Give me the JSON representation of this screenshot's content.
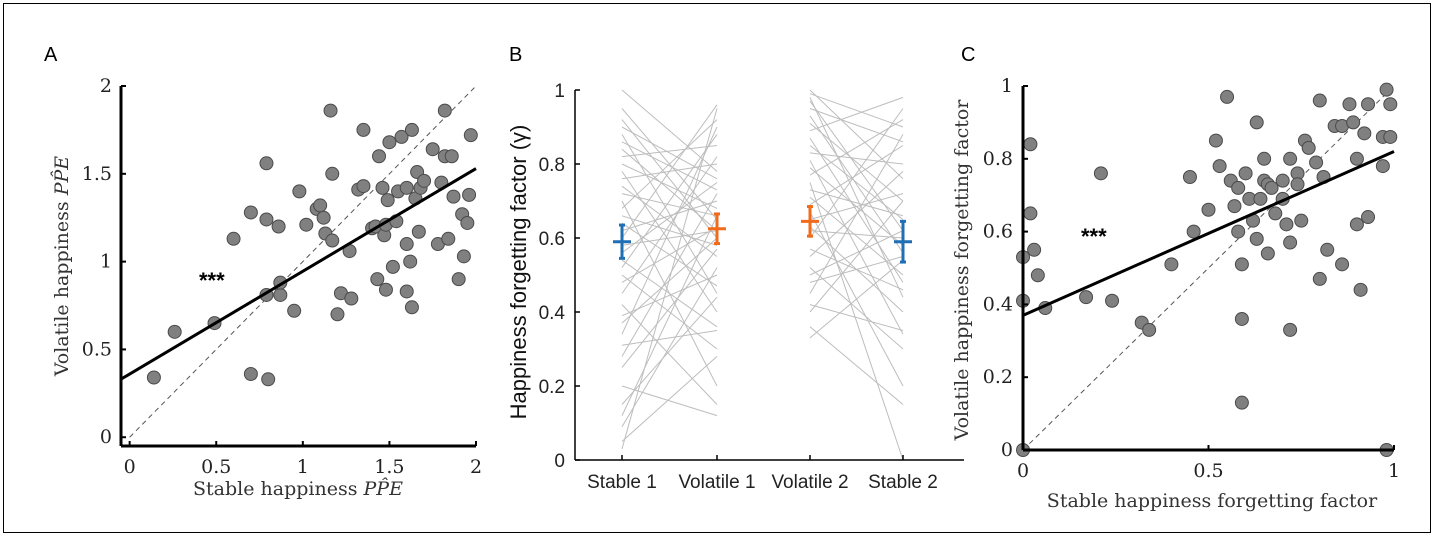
{
  "colors": {
    "point_fill": "#808080",
    "point_stroke": "#4a4a4a",
    "regression": "#000000",
    "identity": "#555555",
    "pair_line": "#bdbdbd",
    "stable": "#1f6fb4",
    "volatile": "#f26b1d"
  },
  "chart_data": [
    {
      "panel": "A",
      "type": "scatter",
      "xlabel": "Stable happiness",
      "xlabel_math": "PP̂E",
      "ylabel": "Volatile happiness",
      "ylabel_math": "PP̂E",
      "xlim": [
        -0.05,
        2.0
      ],
      "ylim": [
        -0.05,
        2.0
      ],
      "xticks": [
        "0",
        "0.5",
        "1",
        "1.5",
        "2"
      ],
      "yticks": [
        "0",
        "0.5",
        "1",
        "1.5",
        "2"
      ],
      "annotation": "***",
      "identity_line": true,
      "regression": {
        "intercept": 0.36,
        "slope": 0.585
      },
      "points": [
        [
          0.14,
          0.34
        ],
        [
          0.26,
          0.6
        ],
        [
          0.49,
          0.65
        ],
        [
          0.6,
          1.13
        ],
        [
          0.7,
          1.28
        ],
        [
          0.7,
          0.36
        ],
        [
          0.8,
          0.33
        ],
        [
          0.79,
          1.56
        ],
        [
          0.79,
          1.24
        ],
        [
          0.79,
          0.81
        ],
        [
          0.87,
          0.81
        ],
        [
          0.86,
          1.2
        ],
        [
          0.87,
          0.88
        ],
        [
          0.95,
          0.72
        ],
        [
          0.98,
          1.4
        ],
        [
          1.02,
          1.21
        ],
        [
          1.08,
          1.3
        ],
        [
          1.1,
          1.32
        ],
        [
          1.12,
          1.25
        ],
        [
          1.13,
          1.16
        ],
        [
          1.16,
          1.86
        ],
        [
          1.17,
          1.5
        ],
        [
          1.17,
          1.12
        ],
        [
          1.2,
          0.7
        ],
        [
          1.22,
          0.82
        ],
        [
          1.27,
          1.06
        ],
        [
          1.28,
          0.79
        ],
        [
          1.32,
          1.41
        ],
        [
          1.35,
          1.43
        ],
        [
          1.35,
          1.75
        ],
        [
          1.4,
          1.19
        ],
        [
          1.42,
          1.2
        ],
        [
          1.43,
          0.9
        ],
        [
          1.44,
          1.6
        ],
        [
          1.46,
          1.42
        ],
        [
          1.47,
          1.15
        ],
        [
          1.48,
          1.21
        ],
        [
          1.48,
          0.84
        ],
        [
          1.49,
          1.35
        ],
        [
          1.5,
          1.68
        ],
        [
          1.52,
          0.97
        ],
        [
          1.54,
          1.23
        ],
        [
          1.55,
          1.4
        ],
        [
          1.57,
          1.71
        ],
        [
          1.6,
          0.83
        ],
        [
          1.6,
          1.1
        ],
        [
          1.6,
          1.42
        ],
        [
          1.62,
          1.0
        ],
        [
          1.63,
          1.75
        ],
        [
          1.63,
          0.74
        ],
        [
          1.65,
          1.36
        ],
        [
          1.66,
          1.51
        ],
        [
          1.67,
          1.17
        ],
        [
          1.68,
          1.42
        ],
        [
          1.7,
          1.46
        ],
        [
          1.75,
          1.64
        ],
        [
          1.78,
          1.1
        ],
        [
          1.8,
          1.45
        ],
        [
          1.82,
          1.6
        ],
        [
          1.82,
          1.86
        ],
        [
          1.84,
          1.13
        ],
        [
          1.86,
          1.6
        ],
        [
          1.87,
          1.37
        ],
        [
          1.9,
          0.9
        ],
        [
          1.92,
          1.27
        ],
        [
          1.93,
          1.03
        ],
        [
          1.95,
          1.22
        ],
        [
          1.96,
          1.38
        ],
        [
          1.97,
          1.72
        ]
      ]
    },
    {
      "panel": "B",
      "type": "line",
      "ylabel": "Happiness forgetting factor (γ)",
      "ylim": [
        0,
        1
      ],
      "yticks": [
        "0",
        "0.2",
        "0.4",
        "0.6",
        "0.8",
        "1"
      ],
      "categories": [
        "Stable 1",
        "Volatile 1",
        "Volatile 2",
        "Stable 2"
      ],
      "pairs_block1": [
        [
          0.03,
          0.95
        ],
        [
          0.05,
          0.28
        ],
        [
          0.09,
          0.52
        ],
        [
          0.12,
          0.66
        ],
        [
          0.15,
          0.44
        ],
        [
          0.2,
          0.12
        ],
        [
          0.25,
          0.57
        ],
        [
          0.28,
          0.72
        ],
        [
          0.31,
          0.35
        ],
        [
          0.34,
          0.9
        ],
        [
          0.37,
          0.6
        ],
        [
          0.39,
          0.5
        ],
        [
          0.42,
          0.15
        ],
        [
          0.45,
          0.82
        ],
        [
          0.48,
          0.63
        ],
        [
          0.5,
          0.3
        ],
        [
          0.52,
          0.88
        ],
        [
          0.54,
          0.36
        ],
        [
          0.56,
          0.75
        ],
        [
          0.58,
          0.62
        ],
        [
          0.6,
          0.96
        ],
        [
          0.62,
          0.7
        ],
        [
          0.64,
          0.47
        ],
        [
          0.66,
          0.58
        ],
        [
          0.68,
          0.92
        ],
        [
          0.7,
          0.2
        ],
        [
          0.72,
          0.66
        ],
        [
          0.74,
          0.55
        ],
        [
          0.76,
          0.8
        ],
        [
          0.78,
          0.4
        ],
        [
          0.8,
          0.68
        ],
        [
          0.82,
          0.85
        ],
        [
          0.84,
          0.62
        ],
        [
          0.86,
          0.73
        ],
        [
          0.88,
          0.45
        ],
        [
          0.9,
          0.76
        ],
        [
          0.92,
          0.6
        ],
        [
          0.95,
          0.65
        ],
        [
          1.0,
          0.78
        ]
      ],
      "pairs_block2": [
        [
          0.33,
          0.54
        ],
        [
          0.36,
          0.15
        ],
        [
          0.4,
          0.7
        ],
        [
          0.42,
          0.35
        ],
        [
          0.45,
          0.88
        ],
        [
          0.48,
          0.55
        ],
        [
          0.5,
          0.62
        ],
        [
          0.52,
          0.3
        ],
        [
          0.55,
          0.78
        ],
        [
          0.57,
          0.46
        ],
        [
          0.6,
          0.95
        ],
        [
          0.62,
          0.6
        ],
        [
          0.63,
          0.4
        ],
        [
          0.65,
          0.72
        ],
        [
          0.67,
          0.2
        ],
        [
          0.69,
          0.85
        ],
        [
          0.71,
          0.5
        ],
        [
          0.73,
          0.66
        ],
        [
          0.75,
          0.0
        ],
        [
          0.77,
          0.92
        ],
        [
          0.79,
          0.58
        ],
        [
          0.81,
          0.34
        ],
        [
          0.83,
          0.8
        ],
        [
          0.85,
          0.65
        ],
        [
          0.87,
          0.48
        ],
        [
          0.89,
          0.98
        ],
        [
          0.91,
          0.7
        ],
        [
          0.93,
          0.56
        ],
        [
          0.95,
          0.86
        ],
        [
          0.97,
          0.62
        ],
        [
          0.98,
          0.44
        ],
        [
          0.99,
          0.9
        ],
        [
          1.0,
          0.76
        ]
      ],
      "means": [
        {
          "category": "Stable 1",
          "mean": 0.59,
          "sem": 0.045,
          "color": "stable"
        },
        {
          "category": "Volatile 1",
          "mean": 0.625,
          "sem": 0.04,
          "color": "volatile"
        },
        {
          "category": "Volatile 2",
          "mean": 0.645,
          "sem": 0.04,
          "color": "volatile"
        },
        {
          "category": "Stable 2",
          "mean": 0.59,
          "sem": 0.055,
          "color": "stable"
        }
      ]
    },
    {
      "panel": "C",
      "type": "scatter",
      "xlabel": "Stable happiness forgetting factor",
      "ylabel": "Volatile happiness forgetting factor",
      "xlim": [
        0,
        1
      ],
      "ylim": [
        0,
        1
      ],
      "xticks": [
        "0",
        "0.5",
        "1"
      ],
      "yticks": [
        "0",
        "0.2",
        "0.4",
        "0.6",
        "0.8",
        "1"
      ],
      "annotation": "***",
      "identity_line": true,
      "regression": {
        "intercept": 0.37,
        "slope": 0.45
      },
      "points": [
        [
          0.0,
          0.0
        ],
        [
          0.0,
          0.41
        ],
        [
          0.0,
          0.53
        ],
        [
          0.02,
          0.84
        ],
        [
          0.02,
          0.65
        ],
        [
          0.03,
          0.55
        ],
        [
          0.04,
          0.48
        ],
        [
          0.06,
          0.39
        ],
        [
          0.17,
          0.42
        ],
        [
          0.21,
          0.76
        ],
        [
          0.24,
          0.41
        ],
        [
          0.32,
          0.35
        ],
        [
          0.34,
          0.33
        ],
        [
          0.4,
          0.51
        ],
        [
          0.45,
          0.75
        ],
        [
          0.46,
          0.6
        ],
        [
          0.5,
          0.66
        ],
        [
          0.52,
          0.85
        ],
        [
          0.53,
          0.78
        ],
        [
          0.55,
          0.97
        ],
        [
          0.56,
          0.74
        ],
        [
          0.57,
          0.67
        ],
        [
          0.58,
          0.72
        ],
        [
          0.58,
          0.6
        ],
        [
          0.59,
          0.51
        ],
        [
          0.59,
          0.36
        ],
        [
          0.59,
          0.13
        ],
        [
          0.6,
          0.76
        ],
        [
          0.61,
          0.69
        ],
        [
          0.62,
          0.63
        ],
        [
          0.63,
          0.9
        ],
        [
          0.63,
          0.58
        ],
        [
          0.64,
          0.69
        ],
        [
          0.65,
          0.8
        ],
        [
          0.65,
          0.74
        ],
        [
          0.66,
          0.54
        ],
        [
          0.66,
          0.73
        ],
        [
          0.67,
          0.72
        ],
        [
          0.68,
          0.65
        ],
        [
          0.7,
          0.74
        ],
        [
          0.7,
          0.69
        ],
        [
          0.71,
          0.62
        ],
        [
          0.72,
          0.8
        ],
        [
          0.72,
          0.57
        ],
        [
          0.72,
          0.33
        ],
        [
          0.74,
          0.76
        ],
        [
          0.74,
          0.73
        ],
        [
          0.75,
          0.63
        ],
        [
          0.76,
          0.85
        ],
        [
          0.77,
          0.83
        ],
        [
          0.79,
          0.79
        ],
        [
          0.8,
          0.47
        ],
        [
          0.8,
          0.96
        ],
        [
          0.81,
          0.75
        ],
        [
          0.82,
          0.55
        ],
        [
          0.84,
          0.89
        ],
        [
          0.86,
          0.51
        ],
        [
          0.86,
          0.89
        ],
        [
          0.88,
          0.95
        ],
        [
          0.89,
          0.9
        ],
        [
          0.9,
          0.62
        ],
        [
          0.9,
          0.8
        ],
        [
          0.91,
          0.44
        ],
        [
          0.92,
          0.87
        ],
        [
          0.93,
          0.95
        ],
        [
          0.93,
          0.64
        ],
        [
          0.97,
          0.78
        ],
        [
          0.97,
          0.86
        ],
        [
          0.98,
          0.0
        ],
        [
          0.98,
          0.99
        ],
        [
          0.99,
          0.95
        ],
        [
          0.99,
          0.86
        ]
      ]
    }
  ]
}
